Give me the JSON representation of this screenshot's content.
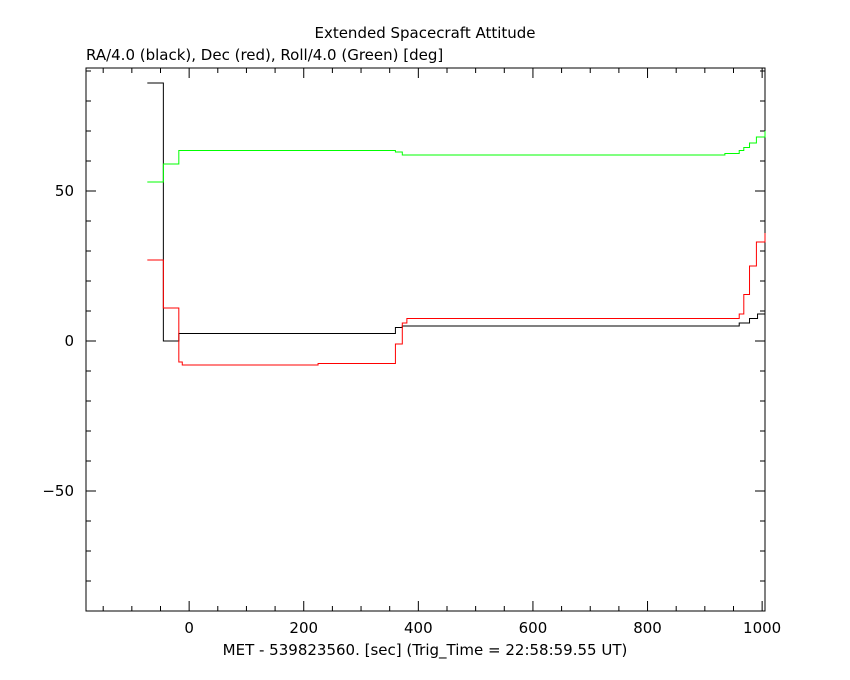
{
  "chart_data": {
    "type": "line",
    "title": "Extended Spacecraft Attitude",
    "subtitle": "RA/4.0 (black), Dec (red), Roll/4.0 (Green) [deg]",
    "xlabel": "MET - 539823560. [sec] (Trig_Time = 22:58:59.55 UT)",
    "ylabel": "",
    "xlim": [
      -180,
      1005
    ],
    "ylim": [
      -90,
      91
    ],
    "x_ticks": [
      0,
      200,
      400,
      600,
      800,
      1000
    ],
    "x_tick_labels": [
      "0",
      "200",
      "400",
      "600",
      "800",
      "1000"
    ],
    "y_ticks": [
      -50,
      0,
      50
    ],
    "y_tick_labels": [
      "−50",
      "0",
      "50"
    ],
    "x_minor_step": 50,
    "y_minor_step": 10,
    "grid": false,
    "step": true,
    "series": [
      {
        "color": "#000000",
        "x": [
          -73,
          -45,
          -18,
          360,
          372,
          960,
          978,
          992,
          1005
        ],
        "y": [
          86,
          0,
          2.5,
          4.5,
          5,
          6,
          7.5,
          9,
          11
        ]
      },
      {
        "color": "#ff0000",
        "x": [
          -73,
          -45,
          -18,
          -12,
          225,
          360,
          372,
          380,
          960,
          968,
          978,
          990,
          1005
        ],
        "y": [
          27,
          11,
          -7,
          -8,
          -7.5,
          -1,
          6,
          7.5,
          9,
          15.5,
          25,
          33,
          36
        ]
      },
      {
        "color": "#00ff00",
        "x": [
          -73,
          -45,
          -18,
          360,
          372,
          935,
          960,
          968,
          978,
          990,
          1005
        ],
        "y": [
          53,
          59,
          63.5,
          63,
          62,
          62.5,
          63.5,
          64.5,
          66,
          68,
          70
        ]
      }
    ]
  }
}
